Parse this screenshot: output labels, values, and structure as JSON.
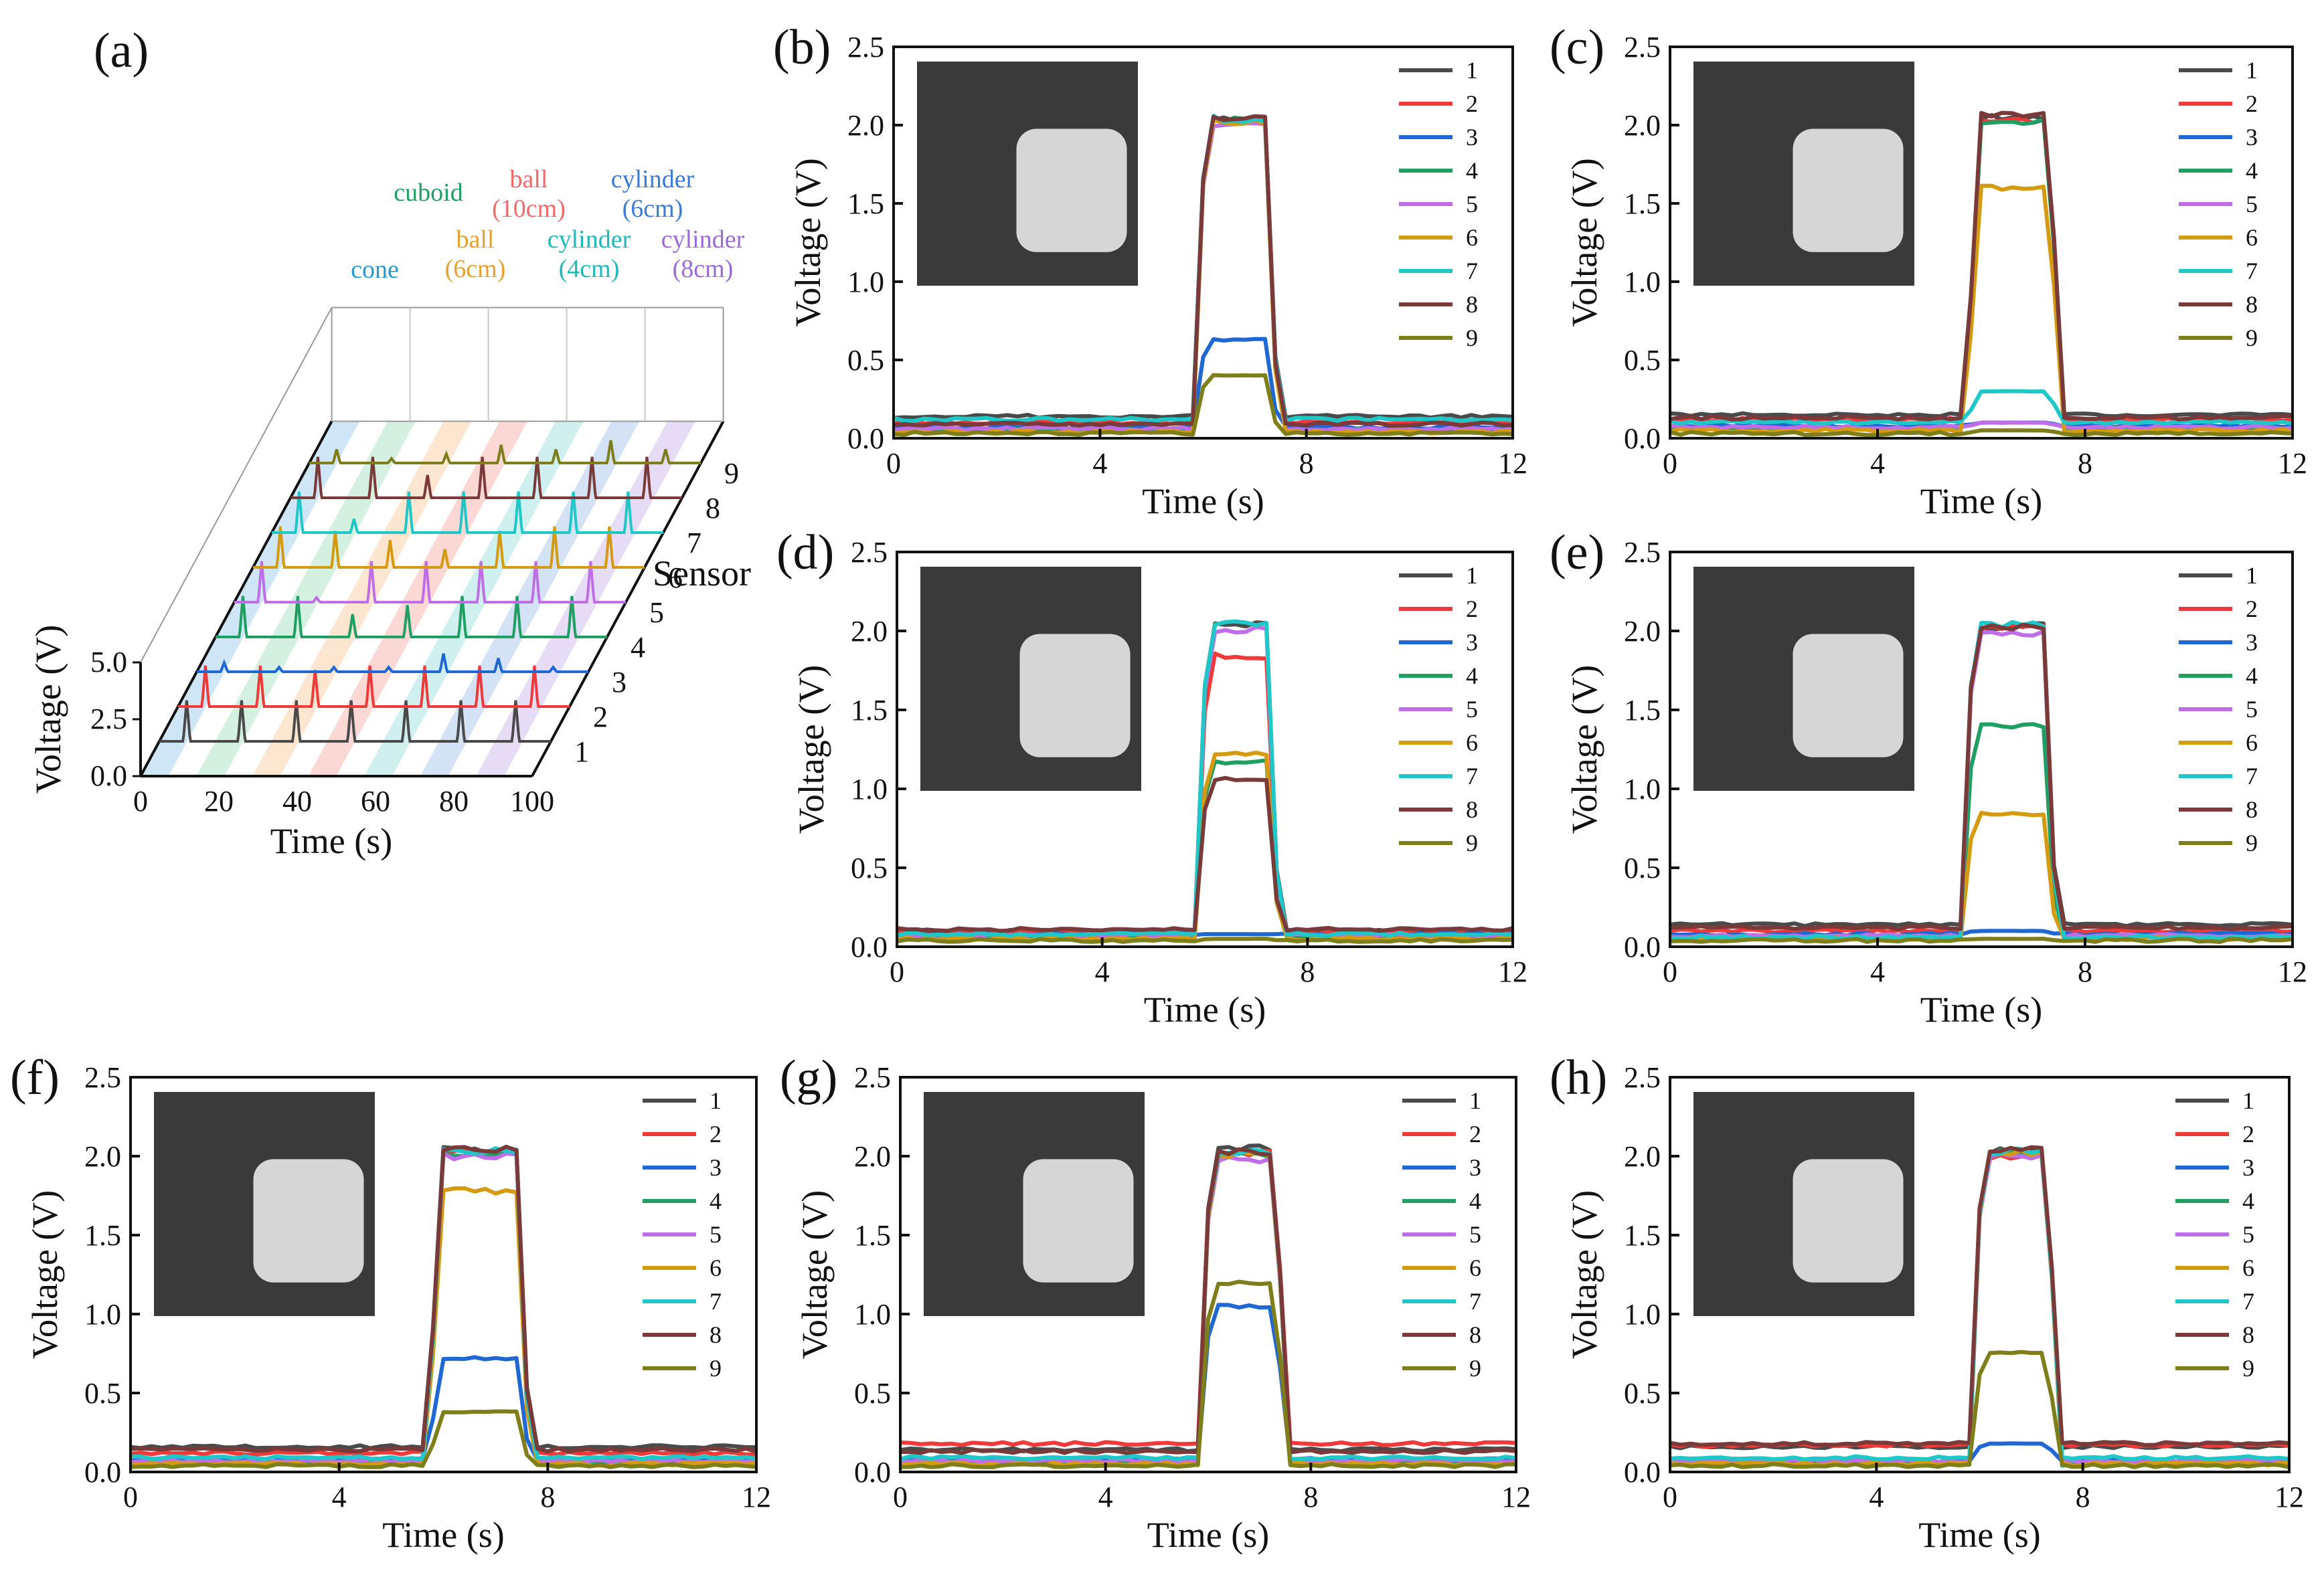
{
  "figure": {
    "sensor_colors": [
      "#4a4a4a",
      "#f03a3a",
      "#1f67d2",
      "#1fa062",
      "#c06ee8",
      "#d49a10",
      "#1fc8c8",
      "#7a3a3a",
      "#7e7e1a"
    ]
  },
  "panel_a": {
    "letter": "(a)",
    "zlabel": "Voltage (V)",
    "xlabel": "Time (s)",
    "ylabel": "Sensor",
    "z_ticks": [
      "0.0",
      "2.5",
      "5.0"
    ],
    "x_ticks": [
      "0",
      "20",
      "40",
      "60",
      "80",
      "100"
    ],
    "sensor_ticks": [
      "1",
      "2",
      "3",
      "4",
      "5",
      "6",
      "7",
      "8",
      "9"
    ],
    "objects": [
      {
        "label": "cone",
        "color": "#1f9bd0"
      },
      {
        "label": "cuboid",
        "color": "#1fa062"
      },
      {
        "label": "ball\n(6cm)",
        "color": "#e8a030"
      },
      {
        "label": "ball\n(10cm)",
        "color": "#f06a6a"
      },
      {
        "label": "cylinder\n(4cm)",
        "color": "#1fb8b8"
      },
      {
        "label": "cylinder\n(6cm)",
        "color": "#3a7ad8"
      },
      {
        "label": "cylinder\n(8cm)",
        "color": "#9a6ad8"
      }
    ],
    "stripe_colors": [
      "#cfe6f6",
      "#d3f0e0",
      "#fce6d0",
      "#fcd8d4",
      "#d0f0f0",
      "#d4e2f6",
      "#e6dcf6"
    ]
  },
  "chart_data": [
    {
      "type": "line",
      "panel": "(b)",
      "xlabel": "Time (s)",
      "ylabel": "Voltage (V)",
      "xlim": [
        0,
        12
      ],
      "ylim": [
        0,
        2.5
      ],
      "x_ticks": [
        "0",
        "4",
        "8",
        "12"
      ],
      "y_ticks": [
        "0.0",
        "0.5",
        "1.0",
        "1.5",
        "2.0",
        "2.5"
      ],
      "legend": [
        "1",
        "2",
        "3",
        "4",
        "5",
        "6",
        "7",
        "8",
        "9"
      ],
      "press_start": 5.9,
      "press_end": 7.2,
      "baseline": [
        0.14,
        0.1,
        0.07,
        0.05,
        0.06,
        0.04,
        0.12,
        0.09,
        0.03
      ],
      "peak": [
        2.04,
        2.03,
        0.63,
        2.04,
        2.0,
        2.02,
        2.04,
        2.04,
        0.4
      ]
    },
    {
      "type": "line",
      "panel": "(c)",
      "xlabel": "Time (s)",
      "ylabel": "Voltage (V)",
      "xlim": [
        0,
        12
      ],
      "ylim": [
        0,
        2.5
      ],
      "x_ticks": [
        "0",
        "4",
        "8",
        "12"
      ],
      "y_ticks": [
        "0.0",
        "0.5",
        "1.0",
        "1.5",
        "2.0",
        "2.5"
      ],
      "legend": [
        "1",
        "2",
        "3",
        "4",
        "5",
        "6",
        "7",
        "8",
        "9"
      ],
      "press_start": 5.8,
      "press_end": 7.3,
      "baseline": [
        0.15,
        0.12,
        0.08,
        0.06,
        0.07,
        0.05,
        0.1,
        0.13,
        0.03
      ],
      "peak": [
        2.05,
        2.02,
        0.1,
        2.02,
        0.1,
        1.6,
        0.3,
        2.06,
        0.05
      ]
    },
    {
      "type": "line",
      "panel": "(d)",
      "xlabel": "Time (s)",
      "ylabel": "Voltage (V)",
      "xlim": [
        0,
        12
      ],
      "ylim": [
        0,
        2.5
      ],
      "x_ticks": [
        "0",
        "4",
        "8",
        "12"
      ],
      "y_ticks": [
        "0.0",
        "0.5",
        "1.0",
        "1.5",
        "2.0",
        "2.5"
      ],
      "legend": [
        "1",
        "2",
        "3",
        "4",
        "5",
        "6",
        "7",
        "8",
        "9"
      ],
      "press_start": 5.9,
      "press_end": 7.2,
      "baseline": [
        0.1,
        0.09,
        0.08,
        0.06,
        0.07,
        0.05,
        0.08,
        0.11,
        0.04
      ],
      "peak": [
        2.04,
        1.84,
        0.08,
        1.17,
        2.01,
        1.22,
        2.05,
        1.06,
        0.05
      ]
    },
    {
      "type": "line",
      "panel": "(e)",
      "xlabel": "Time (s)",
      "ylabel": "Voltage (V)",
      "xlim": [
        0,
        12
      ],
      "ylim": [
        0,
        2.5
      ],
      "x_ticks": [
        "0",
        "4",
        "8",
        "12"
      ],
      "y_ticks": [
        "0.0",
        "0.5",
        "1.0",
        "1.5",
        "2.0",
        "2.5"
      ],
      "legend": [
        "1",
        "2",
        "3",
        "4",
        "5",
        "6",
        "7",
        "8",
        "9"
      ],
      "press_start": 5.7,
      "press_end": 7.2,
      "baseline": [
        0.14,
        0.1,
        0.08,
        0.06,
        0.07,
        0.05,
        0.06,
        0.12,
        0.04
      ],
      "peak": [
        2.03,
        2.02,
        0.1,
        1.4,
        1.99,
        0.84,
        2.04,
        2.02,
        0.05
      ]
    },
    {
      "type": "line",
      "panel": "(f)",
      "xlabel": "Time (s)",
      "ylabel": "Voltage (V)",
      "xlim": [
        0,
        12
      ],
      "ylim": [
        0,
        2.5
      ],
      "x_ticks": [
        "0",
        "4",
        "8",
        "12"
      ],
      "y_ticks": [
        "0.0",
        "0.5",
        "1.0",
        "1.5",
        "2.0",
        "2.5"
      ],
      "legend": [
        "1",
        "2",
        "3",
        "4",
        "5",
        "6",
        "7",
        "8",
        "9"
      ],
      "press_start": 5.8,
      "press_end": 7.4,
      "baseline": [
        0.16,
        0.12,
        0.08,
        0.06,
        0.07,
        0.05,
        0.09,
        0.14,
        0.04
      ],
      "peak": [
        2.04,
        2.03,
        0.72,
        2.02,
        2.0,
        1.78,
        2.03,
        2.04,
        0.38
      ]
    },
    {
      "type": "line",
      "panel": "(g)",
      "xlabel": "Time (s)",
      "ylabel": "Voltage (V)",
      "xlim": [
        0,
        12
      ],
      "ylim": [
        0,
        2.5
      ],
      "x_ticks": [
        "0",
        "4",
        "8",
        "12"
      ],
      "y_ticks": [
        "0.0",
        "0.5",
        "1.0",
        "1.5",
        "2.0",
        "2.5"
      ],
      "legend": [
        "1",
        "2",
        "3",
        "4",
        "5",
        "6",
        "7",
        "8",
        "9"
      ],
      "press_start": 5.9,
      "press_end": 7.3,
      "baseline": [
        0.14,
        0.18,
        0.08,
        0.06,
        0.07,
        0.05,
        0.09,
        0.13,
        0.04
      ],
      "peak": [
        2.05,
        2.02,
        1.05,
        2.01,
        1.98,
        2.01,
        2.03,
        2.03,
        1.2
      ]
    },
    {
      "type": "line",
      "panel": "(h)",
      "xlabel": "Time (s)",
      "ylabel": "Voltage (V)",
      "xlim": [
        0,
        12
      ],
      "ylim": [
        0,
        2.5
      ],
      "x_ticks": [
        "0",
        "4",
        "8",
        "12"
      ],
      "y_ticks": [
        "0.0",
        "0.5",
        "1.0",
        "1.5",
        "2.0",
        "2.5"
      ],
      "legend": [
        "1",
        "2",
        "3",
        "4",
        "5",
        "6",
        "7",
        "8",
        "9"
      ],
      "press_start": 5.9,
      "press_end": 7.3,
      "baseline": [
        0.16,
        0.17,
        0.07,
        0.05,
        0.07,
        0.05,
        0.09,
        0.18,
        0.04
      ],
      "peak": [
        2.04,
        2.0,
        0.18,
        2.02,
        2.0,
        2.02,
        2.03,
        2.04,
        0.76
      ]
    }
  ]
}
